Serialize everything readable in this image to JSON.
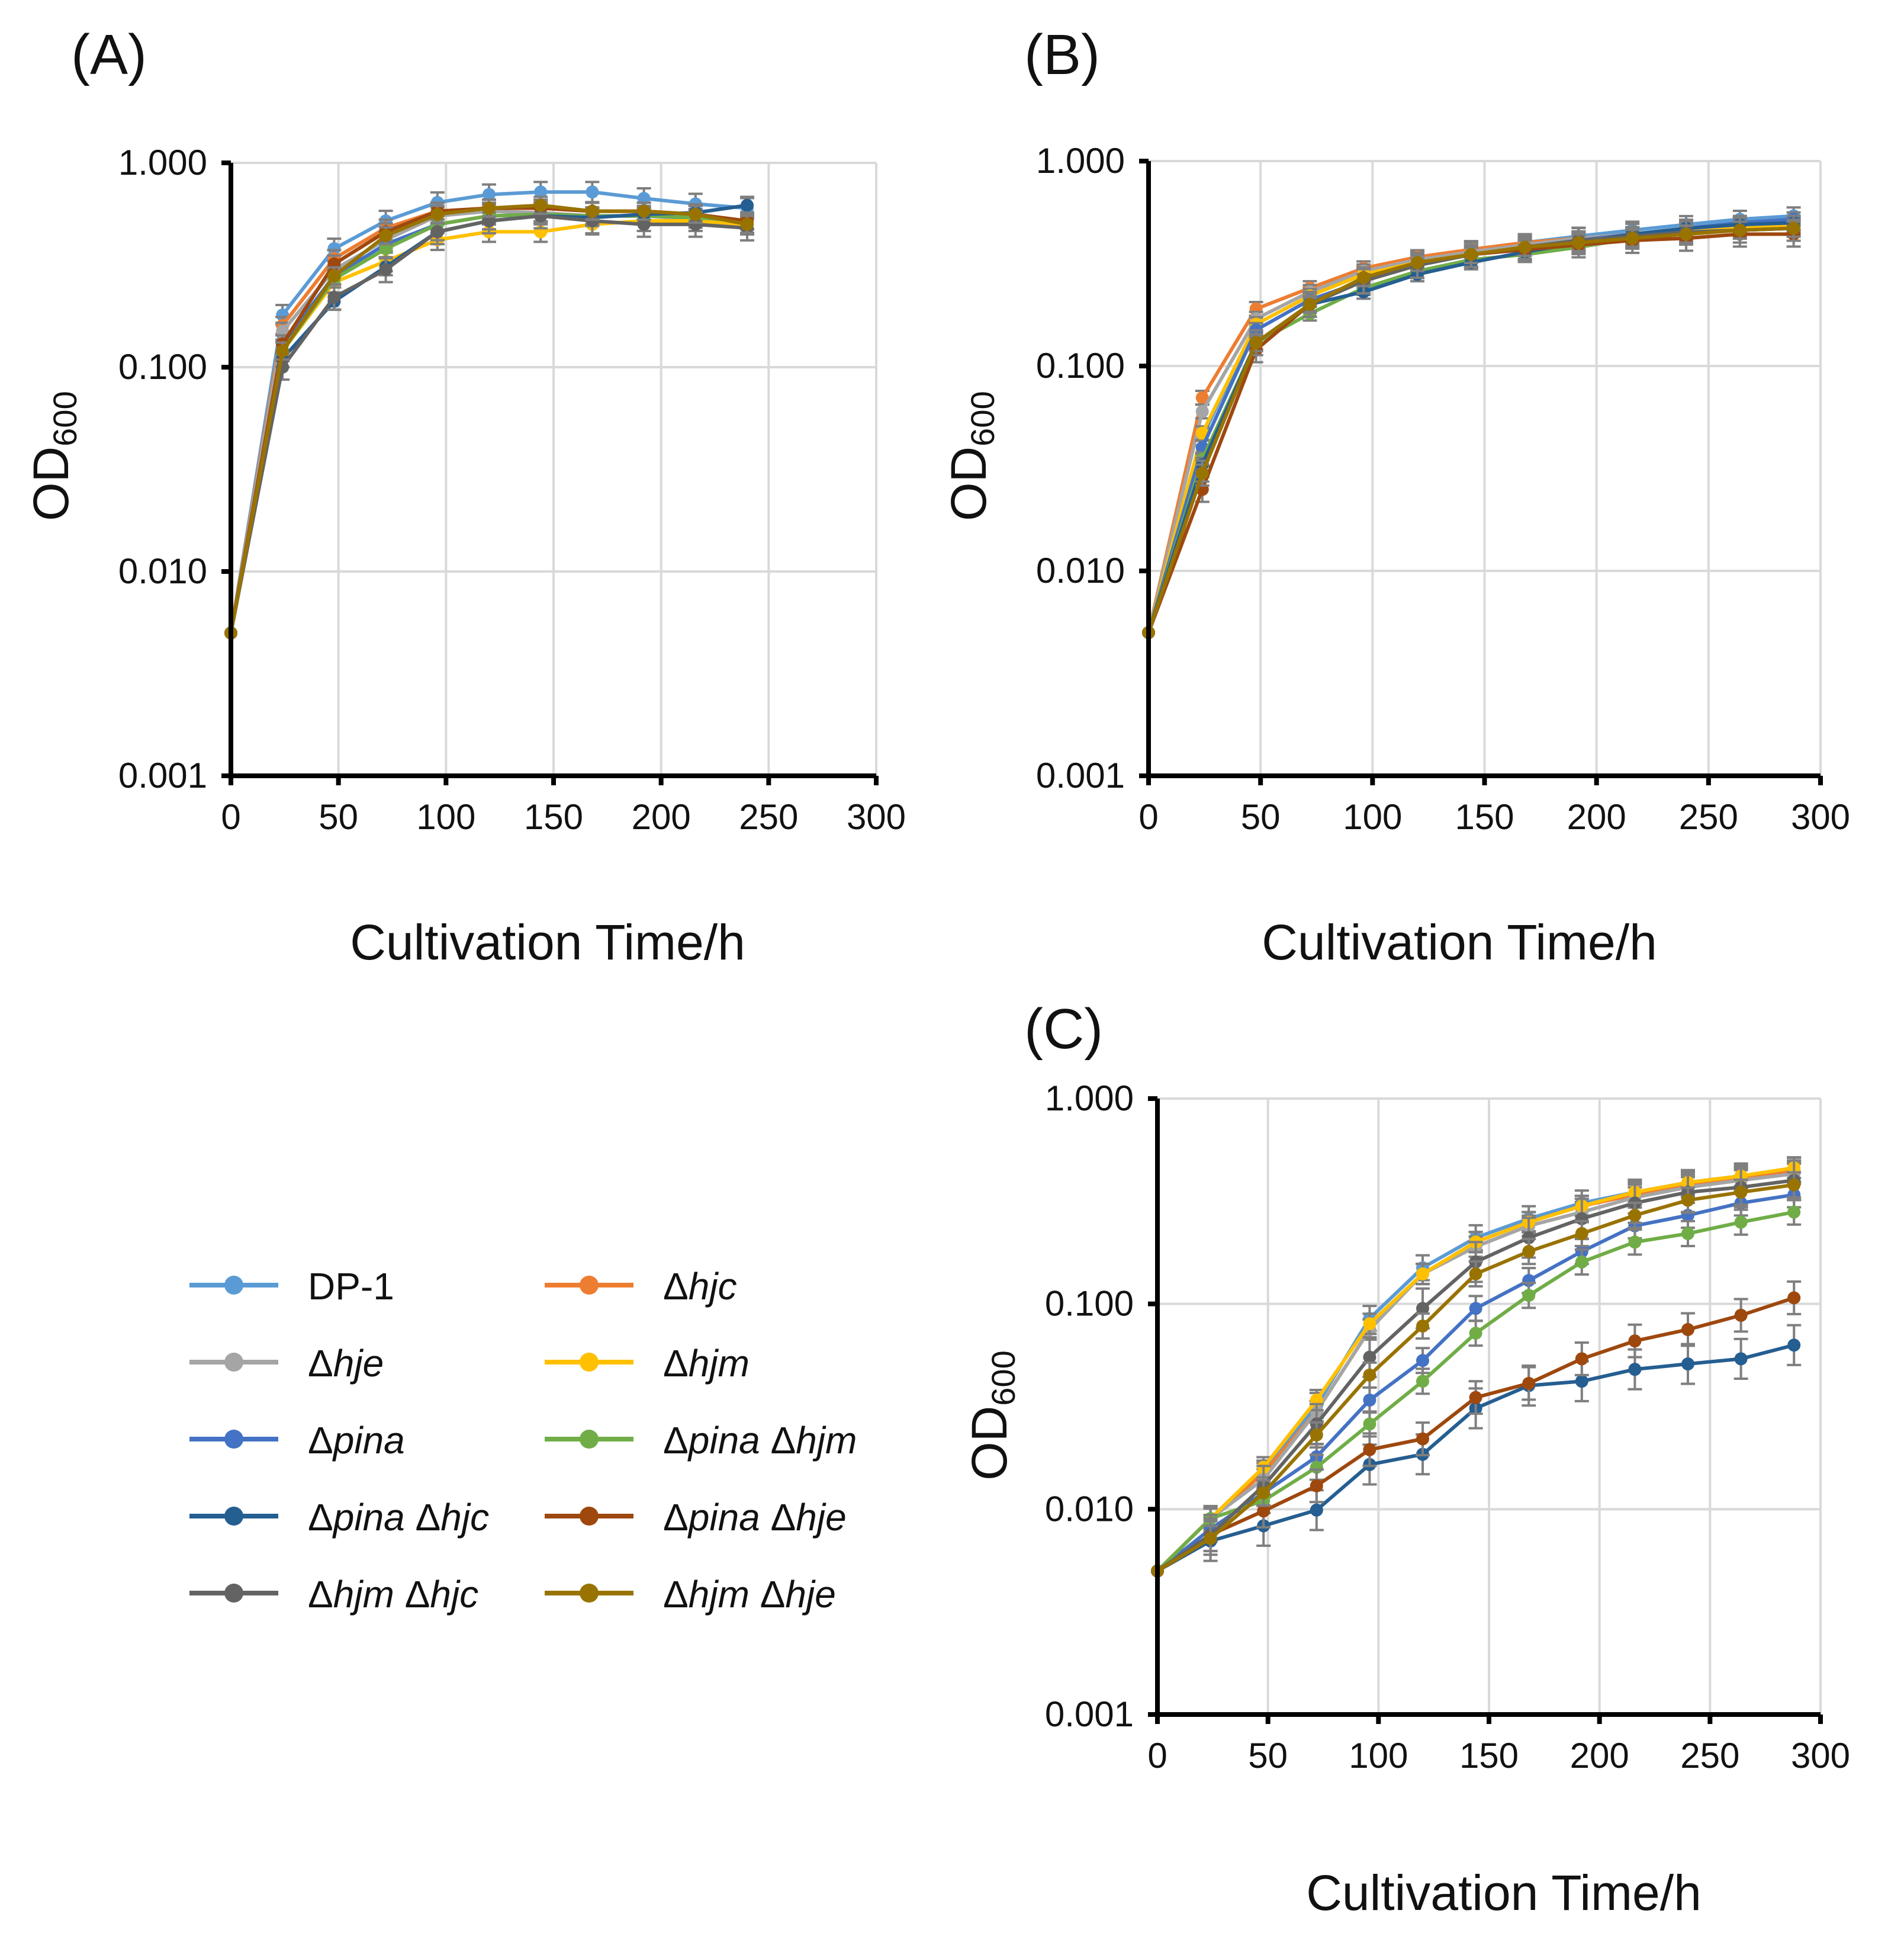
{
  "colors": {
    "dp1": "#5b9bd5",
    "hjc": "#ed7d31",
    "hje": "#a5a5a5",
    "hjm": "#ffc000",
    "pina": "#4472c4",
    "pina_hjm": "#70ad47",
    "pina_hjc": "#255e91",
    "pina_hje": "#9e480e",
    "hjm_hjc": "#636363",
    "hjm_hje": "#997300"
  },
  "legend": [
    {
      "key": "dp1",
      "prefix": "",
      "parts": [
        {
          "t": "DP-1",
          "i": false
        }
      ]
    },
    {
      "key": "hjc",
      "prefix": "Δ",
      "parts": [
        {
          "t": "hjc",
          "i": true
        }
      ]
    },
    {
      "key": "hje",
      "prefix": "Δ",
      "parts": [
        {
          "t": "hje",
          "i": true
        }
      ]
    },
    {
      "key": "hjm",
      "prefix": "Δ",
      "parts": [
        {
          "t": "hjm",
          "i": true
        }
      ]
    },
    {
      "key": "pina",
      "prefix": "Δ",
      "parts": [
        {
          "t": "pina",
          "i": true
        }
      ]
    },
    {
      "key": "pina_hjm",
      "prefix": "Δ",
      "parts": [
        {
          "t": "pina ",
          "i": true
        },
        {
          "t": "Δ",
          "i": false
        },
        {
          "t": "hjm",
          "i": true
        }
      ]
    },
    {
      "key": "pina_hjc",
      "prefix": "Δ",
      "parts": [
        {
          "t": "pina ",
          "i": true
        },
        {
          "t": "Δ",
          "i": false
        },
        {
          "t": "hjc",
          "i": true
        }
      ]
    },
    {
      "key": "pina_hje",
      "prefix": "Δ",
      "parts": [
        {
          "t": "pina ",
          "i": true
        },
        {
          "t": "Δ",
          "i": false
        },
        {
          "t": "hje",
          "i": true
        }
      ]
    },
    {
      "key": "hjm_hjc",
      "prefix": "Δ",
      "parts": [
        {
          "t": "hjm ",
          "i": true
        },
        {
          "t": "Δ",
          "i": false
        },
        {
          "t": "hjc",
          "i": true
        }
      ]
    },
    {
      "key": "hjm_hje",
      "prefix": "Δ",
      "parts": [
        {
          "t": "hjm ",
          "i": true
        },
        {
          "t": "Δ",
          "i": false
        },
        {
          "t": "hje",
          "i": true
        }
      ]
    }
  ],
  "chart_data": [
    {
      "type": "line",
      "panel": "(A)",
      "xlabel": "Cultivation Time/h",
      "ylabel": "OD",
      "ylabel_sub": "600",
      "yscale": "log",
      "xlim": [
        0,
        300
      ],
      "ylim": [
        0.001,
        1
      ],
      "xticks": [
        "0",
        "50",
        "100",
        "150",
        "200",
        "250",
        "300"
      ],
      "yticks": [
        "0.001",
        "0.010",
        "0.100",
        "1.000"
      ],
      "grid": true,
      "x": [
        0,
        24,
        48,
        72,
        96,
        120,
        144,
        168,
        192,
        216,
        240
      ],
      "series": [
        {
          "key": "dp1",
          "name": "DP-1",
          "values": [
            0.005,
            0.18,
            0.38,
            0.52,
            0.64,
            0.7,
            0.72,
            0.72,
            0.67,
            0.63,
            0.6
          ],
          "err": 0.12
        },
        {
          "key": "hjc",
          "name": "Δhjc",
          "values": [
            0.005,
            0.16,
            0.34,
            0.48,
            0.58,
            0.6,
            0.6,
            0.58,
            0.58,
            0.56,
            0.5
          ],
          "err": 0.1
        },
        {
          "key": "hje",
          "name": "Δhje",
          "values": [
            0.005,
            0.15,
            0.3,
            0.42,
            0.55,
            0.58,
            0.57,
            0.55,
            0.55,
            0.53,
            0.5
          ],
          "err": 0.1
        },
        {
          "key": "hjm",
          "name": "Δhjm",
          "values": [
            0.005,
            0.12,
            0.26,
            0.33,
            0.42,
            0.46,
            0.46,
            0.5,
            0.52,
            0.52,
            0.5
          ],
          "err": 0.12
        },
        {
          "key": "pina",
          "name": "Δpina",
          "values": [
            0.005,
            0.13,
            0.28,
            0.4,
            0.5,
            0.55,
            0.56,
            0.55,
            0.55,
            0.54,
            0.52
          ],
          "err": 0.1
        },
        {
          "key": "pina_hjm",
          "name": "Δpina Δhjm",
          "values": [
            0.005,
            0.12,
            0.27,
            0.38,
            0.5,
            0.55,
            0.56,
            0.55,
            0.55,
            0.54,
            0.52
          ],
          "err": 0.1
        },
        {
          "key": "pina_hjc",
          "name": "Δpina Δhjc",
          "values": [
            0.005,
            0.11,
            0.21,
            0.31,
            0.46,
            0.52,
            0.55,
            0.54,
            0.56,
            0.57,
            0.62
          ],
          "err": 0.1
        },
        {
          "key": "pina_hje",
          "name": "Δpina Δhje",
          "values": [
            0.005,
            0.13,
            0.32,
            0.46,
            0.58,
            0.6,
            0.6,
            0.58,
            0.58,
            0.56,
            0.52
          ],
          "err": 0.1
        },
        {
          "key": "hjm_hjc",
          "name": "Δhjm Δhjc",
          "values": [
            0.005,
            0.1,
            0.22,
            0.3,
            0.46,
            0.52,
            0.55,
            0.52,
            0.5,
            0.5,
            0.48
          ],
          "err": 0.15
        },
        {
          "key": "hjm_hje",
          "name": "Δhjm Δhje",
          "values": [
            0.005,
            0.12,
            0.28,
            0.44,
            0.56,
            0.6,
            0.62,
            0.58,
            0.58,
            0.56,
            0.5
          ],
          "err": 0.1
        }
      ]
    },
    {
      "type": "line",
      "panel": "(B)",
      "xlabel": "Cultivation Time/h",
      "ylabel": "OD",
      "ylabel_sub": "600",
      "yscale": "log",
      "xlim": [
        0,
        300
      ],
      "ylim": [
        0.001,
        1
      ],
      "xticks": [
        "0",
        "50",
        "100",
        "150",
        "200",
        "250",
        "300"
      ],
      "yticks": [
        "0.001",
        "0.010",
        "0.100",
        "1.000"
      ],
      "grid": true,
      "x": [
        0,
        24,
        48,
        72,
        96,
        120,
        144,
        168,
        192,
        216,
        240,
        264,
        288
      ],
      "series": [
        {
          "key": "dp1",
          "name": "DP-1",
          "values": [
            0.005,
            0.045,
            0.16,
            0.22,
            0.28,
            0.33,
            0.37,
            0.4,
            0.43,
            0.46,
            0.49,
            0.52,
            0.54
          ],
          "err": 0.1
        },
        {
          "key": "hjc",
          "name": "Δhjc",
          "values": [
            0.005,
            0.07,
            0.19,
            0.24,
            0.3,
            0.34,
            0.37,
            0.4,
            0.42,
            0.44,
            0.46,
            0.48,
            0.5
          ],
          "err": 0.08
        },
        {
          "key": "hje",
          "name": "Δhje",
          "values": [
            0.005,
            0.06,
            0.17,
            0.23,
            0.29,
            0.33,
            0.36,
            0.39,
            0.42,
            0.44,
            0.46,
            0.48,
            0.49
          ],
          "err": 0.08
        },
        {
          "key": "hjm",
          "name": "Δhjm",
          "values": [
            0.005,
            0.047,
            0.16,
            0.22,
            0.28,
            0.32,
            0.35,
            0.38,
            0.41,
            0.43,
            0.45,
            0.47,
            0.48
          ],
          "err": 0.08
        },
        {
          "key": "pina",
          "name": "Δpina",
          "values": [
            0.005,
            0.04,
            0.15,
            0.21,
            0.26,
            0.31,
            0.35,
            0.38,
            0.41,
            0.44,
            0.47,
            0.5,
            0.52
          ],
          "err": 0.08
        },
        {
          "key": "pina_hjm",
          "name": "Δpina Δhjm",
          "values": [
            0.005,
            0.035,
            0.13,
            0.18,
            0.24,
            0.29,
            0.33,
            0.35,
            0.38,
            0.42,
            0.44,
            0.46,
            0.47
          ],
          "err": 0.08
        },
        {
          "key": "pina_hjc",
          "name": "Δpina Δhjc",
          "values": [
            0.005,
            0.033,
            0.13,
            0.2,
            0.23,
            0.28,
            0.32,
            0.36,
            0.4,
            0.44,
            0.47,
            0.49,
            0.5
          ],
          "err": 0.08
        },
        {
          "key": "pina_hje",
          "name": "Δpina Δhje",
          "values": [
            0.005,
            0.025,
            0.12,
            0.2,
            0.26,
            0.31,
            0.35,
            0.37,
            0.39,
            0.41,
            0.42,
            0.44,
            0.44
          ],
          "err": 0.15
        },
        {
          "key": "hjm_hjc",
          "name": "Δhjm Δhjc",
          "values": [
            0.005,
            0.03,
            0.13,
            0.2,
            0.26,
            0.31,
            0.35,
            0.38,
            0.41,
            0.43,
            0.45,
            0.46,
            0.47
          ],
          "err": 0.15
        },
        {
          "key": "hjm_hje",
          "name": "Δhjm Δhje",
          "values": [
            0.005,
            0.03,
            0.13,
            0.2,
            0.27,
            0.32,
            0.35,
            0.38,
            0.4,
            0.42,
            0.44,
            0.46,
            0.47
          ],
          "err": 0.1
        }
      ]
    },
    {
      "type": "line",
      "panel": "(C)",
      "xlabel": "Cultivation Time/h",
      "ylabel": "OD",
      "ylabel_sub": "600",
      "yscale": "log",
      "xlim": [
        0,
        300
      ],
      "ylim": [
        0.001,
        1
      ],
      "xticks": [
        "0",
        "50",
        "100",
        "150",
        "200",
        "250",
        "300"
      ],
      "yticks": [
        "0.001",
        "0.010",
        "0.100",
        "1.000"
      ],
      "grid": true,
      "x": [
        0,
        24,
        48,
        72,
        96,
        120,
        144,
        168,
        192,
        216,
        240,
        264,
        288
      ],
      "series": [
        {
          "key": "dp1",
          "name": "DP-1",
          "values": [
            0.005,
            0.009,
            0.015,
            0.032,
            0.085,
            0.15,
            0.21,
            0.26,
            0.31,
            0.35,
            0.39,
            0.42,
            0.45
          ],
          "err": 0.15
        },
        {
          "key": "hjc",
          "name": "Δhjc",
          "values": [
            0.005,
            0.009,
            0.015,
            0.03,
            0.075,
            0.14,
            0.2,
            0.25,
            0.3,
            0.34,
            0.38,
            0.41,
            0.44
          ],
          "err": 0.12
        },
        {
          "key": "hje",
          "name": "Δhje",
          "values": [
            0.005,
            0.009,
            0.014,
            0.03,
            0.075,
            0.14,
            0.19,
            0.24,
            0.28,
            0.33,
            0.37,
            0.4,
            0.43
          ],
          "err": 0.12
        },
        {
          "key": "hjm",
          "name": "Δhjm",
          "values": [
            0.005,
            0.009,
            0.016,
            0.034,
            0.08,
            0.14,
            0.2,
            0.25,
            0.3,
            0.35,
            0.39,
            0.42,
            0.46
          ],
          "err": 0.12
        },
        {
          "key": "pina",
          "name": "Δpina",
          "values": [
            0.005,
            0.008,
            0.012,
            0.018,
            0.034,
            0.053,
            0.095,
            0.13,
            0.18,
            0.24,
            0.27,
            0.31,
            0.34
          ],
          "err": 0.15
        },
        {
          "key": "pina_hjm",
          "name": "Δpina Δhjm",
          "values": [
            0.005,
            0.009,
            0.011,
            0.016,
            0.026,
            0.042,
            0.072,
            0.11,
            0.16,
            0.2,
            0.22,
            0.25,
            0.28
          ],
          "err": 0.15
        },
        {
          "key": "pina_hjc",
          "name": "Δpina Δhjc",
          "values": [
            0.005,
            0.007,
            0.0083,
            0.0099,
            0.0165,
            0.0185,
            0.031,
            0.04,
            0.042,
            0.048,
            0.051,
            0.054,
            0.063
          ],
          "err": 0.25
        },
        {
          "key": "pina_hje",
          "name": "Δpina Δhje",
          "values": [
            0.005,
            0.0075,
            0.0098,
            0.013,
            0.0195,
            0.022,
            0.035,
            0.041,
            0.054,
            0.066,
            0.075,
            0.088,
            0.107
          ],
          "err": 0.2
        },
        {
          "key": "hjm_hjc",
          "name": "Δhjm Δhjc",
          "values": [
            0.005,
            0.0075,
            0.013,
            0.026,
            0.055,
            0.095,
            0.16,
            0.21,
            0.26,
            0.31,
            0.35,
            0.37,
            0.4
          ],
          "err": 0.25
        },
        {
          "key": "hjm_hje",
          "name": "Δhjm Δhje",
          "values": [
            0.005,
            0.0072,
            0.012,
            0.023,
            0.045,
            0.078,
            0.14,
            0.18,
            0.22,
            0.27,
            0.32,
            0.35,
            0.38
          ],
          "err": 0.15
        }
      ]
    }
  ]
}
